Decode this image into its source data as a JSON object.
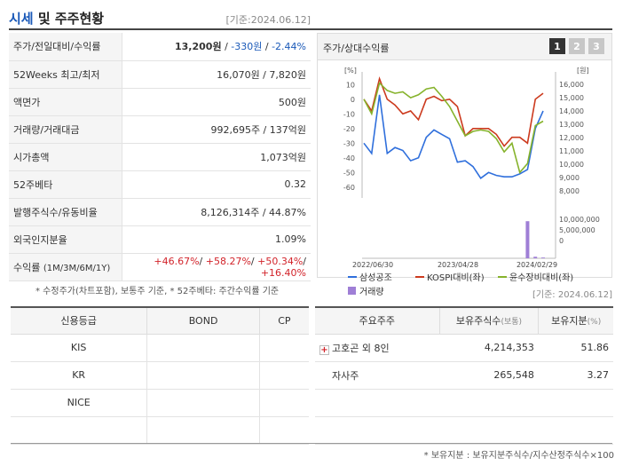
{
  "header": {
    "title_accent": "시세",
    "title_rest": " 및 주주현황",
    "date": "[기준:2024.06.12]"
  },
  "quote": {
    "rows": [
      {
        "label": "주가/전일대비/수익률",
        "price": "13,200원",
        "sep1": " / ",
        "change": "-330원",
        "sep2": " / ",
        "rate": "-2.44%"
      },
      {
        "label": "52Weeks 최고/최저",
        "value": "16,070원 / 7,820원"
      },
      {
        "label": "액면가",
        "value": "500원"
      },
      {
        "label": "거래량/거래대금",
        "value": "992,695주 / 137억원"
      },
      {
        "label": "시가총액",
        "value": "1,073억원"
      },
      {
        "label": "52주베타",
        "value": "0.32"
      },
      {
        "label": "발행주식수/유동비율",
        "value": "8,126,314주 / 44.87%"
      },
      {
        "label": "외국인지분율",
        "value": "1.09%"
      },
      {
        "label": "수익률",
        "label_sub": "(1M/3M/6M/1Y)",
        "r1": "+46.67%",
        "r2": "+58.27%",
        "r3": "+50.34%",
        "r4": "+16.40%",
        "sep": "/ "
      }
    ],
    "note": "* 수정주가(차트포함), 보통주 기준, * 52주베타: 주간수익률 기준"
  },
  "chart_panel": {
    "title": "주가/상대수익률",
    "tabs": [
      "1",
      "2",
      "3"
    ],
    "active_tab": 0
  },
  "chart_data": {
    "type": "line",
    "x_tick_labels": [
      "2022/06/30",
      "2023/04/28",
      "2024/02/29"
    ],
    "y_left_unit": "[%]",
    "y_left_ticks": [
      10,
      0,
      -10,
      -20,
      -30,
      -40,
      -50,
      -60
    ],
    "y_left_range": [
      -65,
      15
    ],
    "y_right_unit": "[원]",
    "y_right_ticks": [
      "16,000",
      "15,000",
      "14,000",
      "13,000",
      "12,000",
      "11,000",
      "10,000",
      "9,000",
      "8,000"
    ],
    "volume_ticks": [
      "10,000,000",
      "5,000,000",
      "0"
    ],
    "volume_range": [
      0,
      10000000
    ],
    "series": [
      {
        "name": "삼성공조",
        "color": "#2f6fdc",
        "values": [
          -30,
          -37,
          3,
          -37,
          -33,
          -35,
          -42,
          -40,
          -26,
          -21,
          -24,
          -27,
          -43,
          -42,
          -46,
          -54,
          -50,
          -52,
          -53,
          -53,
          -51,
          -48,
          -20,
          -8
        ]
      },
      {
        "name": "KOSPI대비(좌)",
        "color": "#cc3a1e",
        "values": [
          0,
          -8,
          14,
          0,
          -4,
          -10,
          -8,
          -14,
          0,
          2,
          -1,
          0,
          -5,
          -25,
          -20,
          -20,
          -20,
          -24,
          -32,
          -26,
          -26,
          -30,
          0,
          4
        ]
      },
      {
        "name": "윤수장비대비(좌)",
        "color": "#86b32c",
        "values": [
          0,
          -10,
          11,
          6,
          4,
          5,
          1,
          3,
          7,
          8,
          2,
          -5,
          -15,
          -25,
          -22,
          -21,
          -22,
          -27,
          -36,
          -30,
          -50,
          -44,
          -18,
          -15
        ]
      }
    ],
    "volume": {
      "name": "거래량",
      "color": "#9f7fd6",
      "values": [
        0,
        0,
        0,
        0,
        0,
        0,
        0,
        0,
        0,
        0,
        0,
        0,
        0,
        0,
        0,
        0,
        0,
        0,
        0,
        0,
        0,
        9500000,
        400000,
        200000
      ]
    }
  },
  "date2": "[기준: 2024.06.12]",
  "credit": {
    "headers": [
      "신용등급",
      "BOND",
      "CP"
    ],
    "rows": [
      {
        "agency": "KIS",
        "bond": "",
        "cp": ""
      },
      {
        "agency": "KR",
        "bond": "",
        "cp": ""
      },
      {
        "agency": "NICE",
        "bond": "",
        "cp": ""
      },
      {
        "agency": "",
        "bond": "",
        "cp": ""
      }
    ]
  },
  "holders": {
    "h_name": "주요주주",
    "h_shares": "보유주식수",
    "h_shares_unit": "(보통)",
    "h_ratio": "보유지분",
    "h_ratio_unit": "(%)",
    "rows": [
      {
        "name": "고호곤 외 8인",
        "shares": "4,214,353",
        "ratio": "51.86",
        "expand_icon": "plus-icon"
      },
      {
        "name": "자사주",
        "shares": "265,548",
        "ratio": "3.27"
      }
    ],
    "note": "* 보유지분 : 보유지분주식수/지수산정주식수×100"
  }
}
